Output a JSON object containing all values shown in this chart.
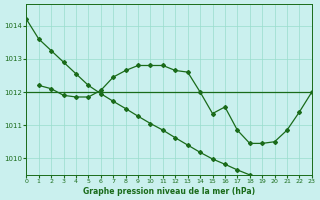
{
  "title": "Graphe pression niveau de la mer (hPa)",
  "bg_color": "#caf0ee",
  "grid_color": "#99ddcc",
  "line_color": "#1a6b1a",
  "xlim": [
    0,
    23
  ],
  "ylim": [
    1009.5,
    1014.65
  ],
  "yticks": [
    1010,
    1011,
    1012,
    1013,
    1014
  ],
  "xticks": [
    0,
    1,
    2,
    3,
    4,
    5,
    6,
    7,
    8,
    9,
    10,
    11,
    12,
    13,
    14,
    15,
    16,
    17,
    18,
    19,
    20,
    21,
    22,
    23
  ],
  "curve1_x": [
    0,
    1,
    2,
    3,
    4,
    5,
    6,
    7,
    8,
    9,
    10,
    11,
    12,
    13,
    14,
    15,
    16,
    17,
    18,
    19,
    20,
    21,
    22,
    23
  ],
  "curve1_y": [
    1014.2,
    1013.6,
    1013.25,
    1012.9,
    1012.55,
    1012.2,
    1011.95,
    1011.72,
    1011.5,
    1011.27,
    1011.05,
    1010.85,
    1010.62,
    1010.4,
    1010.18,
    1009.98,
    1009.82,
    1009.65,
    1009.5,
    null,
    null,
    null,
    null,
    null
  ],
  "curve2_x": [
    1,
    2,
    3,
    4,
    5,
    6,
    7,
    8,
    9,
    10,
    11,
    12,
    13,
    14,
    15,
    16,
    17,
    18,
    19,
    20,
    21,
    22,
    23
  ],
  "curve2_y": [
    1012.2,
    1012.1,
    1011.9,
    1011.85,
    1011.85,
    1012.05,
    1012.45,
    1012.65,
    1012.8,
    1012.8,
    1012.8,
    1012.65,
    1012.6,
    1012.0,
    1011.35,
    1011.55,
    1010.85,
    1010.45,
    1010.45,
    1010.5,
    1010.85,
    1011.4,
    1012.0
  ],
  "hline_y": 1012.0
}
